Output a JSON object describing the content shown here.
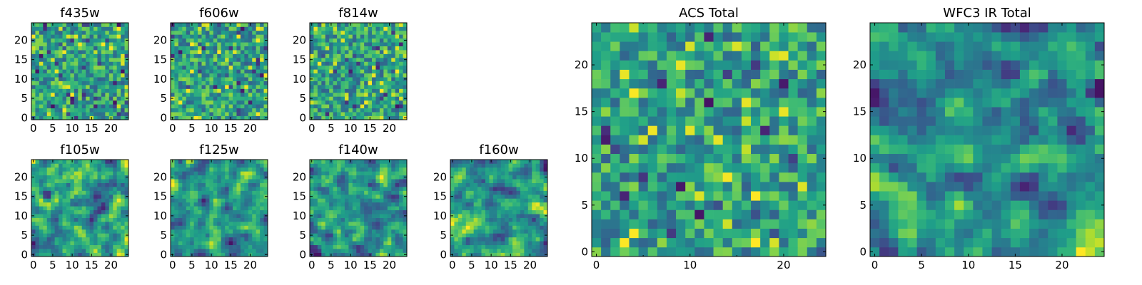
{
  "chart_data": {
    "type": "heatmap",
    "colormap": "viridis",
    "layout": "two rows of four small panels on the left (top row has three panels), plus two large panels on the right",
    "panels": [
      {
        "key": "f435w",
        "title": "f435w",
        "size": 25,
        "xticks": [
          0,
          5,
          10,
          15,
          20
        ],
        "yticks": [
          0,
          5,
          10,
          15,
          20
        ],
        "seed": 11,
        "smooth": 0,
        "vrange": [
          0.0,
          1.0
        ]
      },
      {
        "key": "f606w",
        "title": "f606w",
        "size": 25,
        "xticks": [
          0,
          5,
          10,
          15,
          20
        ],
        "yticks": [
          0,
          5,
          10,
          15,
          20
        ],
        "seed": 23,
        "smooth": 0,
        "vrange": [
          0.0,
          1.0
        ]
      },
      {
        "key": "f814w",
        "title": "f814w",
        "size": 25,
        "xticks": [
          0,
          5,
          10,
          15,
          20
        ],
        "yticks": [
          0,
          5,
          10,
          15,
          20
        ],
        "seed": 37,
        "smooth": 0,
        "vrange": [
          0.0,
          1.0
        ]
      },
      {
        "key": "f105w",
        "title": "f105w",
        "size": 25,
        "xticks": [
          0,
          5,
          10,
          15,
          20
        ],
        "yticks": [
          0,
          5,
          10,
          15,
          20
        ],
        "seed": 41,
        "smooth": 1,
        "vrange": [
          0.0,
          1.0
        ]
      },
      {
        "key": "f125w",
        "title": "f125w",
        "size": 25,
        "xticks": [
          0,
          5,
          10,
          15,
          20
        ],
        "yticks": [
          0,
          5,
          10,
          15,
          20
        ],
        "seed": 53,
        "smooth": 1,
        "vrange": [
          0.0,
          1.0
        ]
      },
      {
        "key": "f140w",
        "title": "f140w",
        "size": 25,
        "xticks": [
          0,
          5,
          10,
          15,
          20
        ],
        "yticks": [
          0,
          5,
          10,
          15,
          20
        ],
        "seed": 67,
        "smooth": 1,
        "vrange": [
          0.0,
          1.0
        ]
      },
      {
        "key": "f160w",
        "title": "f160w",
        "size": 25,
        "xticks": [
          0,
          5,
          10,
          15,
          20
        ],
        "yticks": [
          0,
          5,
          10,
          15,
          20
        ],
        "seed": 79,
        "smooth": 1,
        "vrange": [
          0.0,
          1.0
        ]
      },
      {
        "key": "acs_total",
        "title": "ACS Total",
        "size": 25,
        "xticks": [
          0,
          10,
          20
        ],
        "yticks": [
          0,
          5,
          10,
          15,
          20
        ],
        "xminor": [
          5,
          15
        ],
        "seed": 83,
        "smooth": 0,
        "vrange": [
          0.0,
          1.0
        ]
      },
      {
        "key": "wfc3_total",
        "title": "WFC3 IR Total",
        "size": 25,
        "xticks": [
          0,
          5,
          10,
          15,
          20
        ],
        "yticks": [
          0,
          5,
          10,
          15,
          20
        ],
        "seed": 97,
        "smooth": 1,
        "vrange": [
          0.0,
          1.0
        ]
      }
    ]
  }
}
